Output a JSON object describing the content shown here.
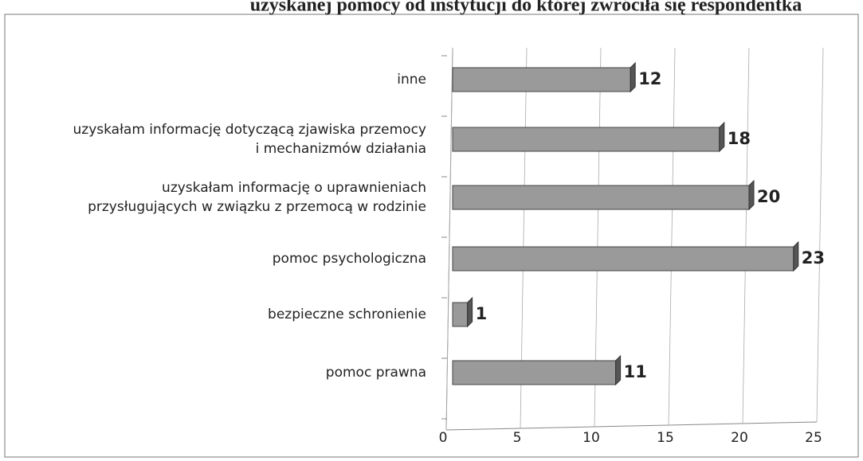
{
  "chart_data": {
    "type": "bar",
    "orientation": "horizontal",
    "title": "uzyskanej pomocy od instytucji do której zwróciła się respondentka",
    "categories": [
      [
        "inne"
      ],
      [
        "uzyskałam informację dotyczącą zjawiska przemocy",
        "i mechanizmów działania"
      ],
      [
        "uzyskałam informację o uprawnieniach",
        "przysługujących w związku z przemocą w rodzinie"
      ],
      [
        "pomoc psychologiczna"
      ],
      [
        "bezpieczne schronienie"
      ],
      [
        "pomoc prawna"
      ]
    ],
    "values": [
      12,
      18,
      20,
      23,
      1,
      11
    ],
    "color": "#9a9a9a",
    "xlim": [
      0,
      25
    ],
    "xticks": [
      0,
      5,
      10,
      15,
      20,
      25
    ],
    "grid": true
  }
}
